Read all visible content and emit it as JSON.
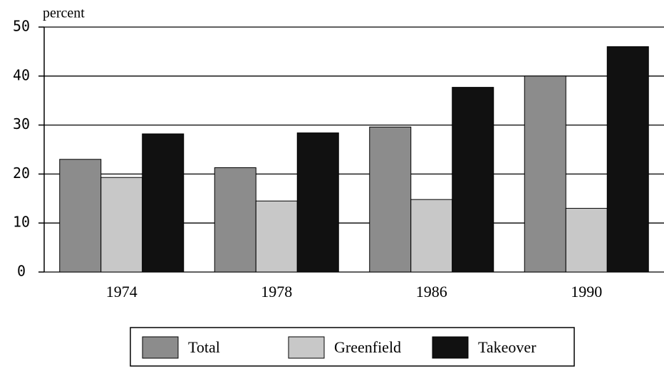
{
  "chart_data": {
    "type": "bar",
    "y_label": "percent",
    "categories": [
      "1974",
      "1978",
      "1986",
      "1990"
    ],
    "series": [
      {
        "name": "Total",
        "color": "#8c8c8c",
        "values": [
          23,
          21.3,
          29.6,
          40
        ]
      },
      {
        "name": "Greenfield",
        "color": "#c8c8c8",
        "values": [
          19.3,
          14.5,
          14.8,
          13
        ]
      },
      {
        "name": "Takeover",
        "color": "#111111",
        "values": [
          28.2,
          28.4,
          37.7,
          46
        ]
      }
    ],
    "ylim": [
      0,
      50
    ],
    "yticks": [
      0,
      10,
      20,
      30,
      40,
      50
    ],
    "grid": true,
    "legend": "bottom"
  }
}
